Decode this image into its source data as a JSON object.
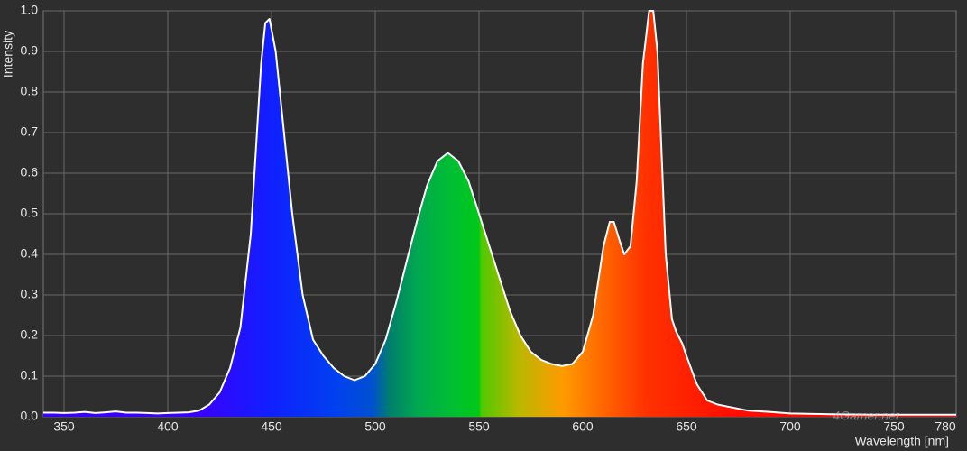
{
  "chart_data": {
    "type": "area",
    "x_label": "Wavelength [nm]",
    "y_label": "Intensity",
    "watermark": "4Gamer.net",
    "x": [
      340,
      345,
      350,
      355,
      360,
      365,
      370,
      375,
      380,
      385,
      390,
      395,
      400,
      405,
      410,
      415,
      420,
      425,
      430,
      435,
      440,
      445,
      447,
      449,
      452,
      455,
      460,
      465,
      470,
      475,
      480,
      485,
      490,
      495,
      500,
      505,
      510,
      515,
      520,
      525,
      530,
      535,
      540,
      545,
      550,
      555,
      560,
      565,
      570,
      575,
      580,
      585,
      590,
      595,
      600,
      605,
      610,
      613,
      615,
      618,
      620,
      623,
      626,
      629,
      632,
      634,
      636,
      638,
      640,
      643,
      645,
      648,
      650,
      655,
      660,
      665,
      670,
      680,
      690,
      700,
      720,
      740,
      760,
      780
    ],
    "values": [
      0.01,
      0.01,
      0.009,
      0.01,
      0.012,
      0.009,
      0.011,
      0.013,
      0.01,
      0.01,
      0.009,
      0.008,
      0.009,
      0.01,
      0.011,
      0.015,
      0.03,
      0.06,
      0.12,
      0.22,
      0.45,
      0.87,
      0.97,
      0.98,
      0.9,
      0.75,
      0.5,
      0.3,
      0.19,
      0.15,
      0.12,
      0.1,
      0.09,
      0.1,
      0.13,
      0.19,
      0.28,
      0.38,
      0.48,
      0.57,
      0.63,
      0.65,
      0.63,
      0.58,
      0.5,
      0.42,
      0.34,
      0.26,
      0.2,
      0.16,
      0.14,
      0.13,
      0.125,
      0.13,
      0.16,
      0.25,
      0.42,
      0.48,
      0.48,
      0.43,
      0.4,
      0.42,
      0.58,
      0.87,
      1.0,
      1.0,
      0.9,
      0.65,
      0.4,
      0.24,
      0.21,
      0.18,
      0.15,
      0.08,
      0.04,
      0.03,
      0.025,
      0.015,
      0.012,
      0.008,
      0.006,
      0.005,
      0.005,
      0.005
    ],
    "color": "#ffffff",
    "xlim": [
      340,
      780
    ],
    "ylim": [
      0,
      1
    ],
    "xticks": [
      350,
      400,
      450,
      500,
      550,
      600,
      650,
      700,
      750,
      780
    ],
    "yticks": [
      {
        "value": 0,
        "label": "0.0"
      },
      0.1,
      0.2,
      0.3,
      0.4,
      0.5,
      0.6,
      0.7,
      0.8,
      0.9,
      {
        "value": 1,
        "label": "1.0"
      }
    ],
    "grid": true
  }
}
